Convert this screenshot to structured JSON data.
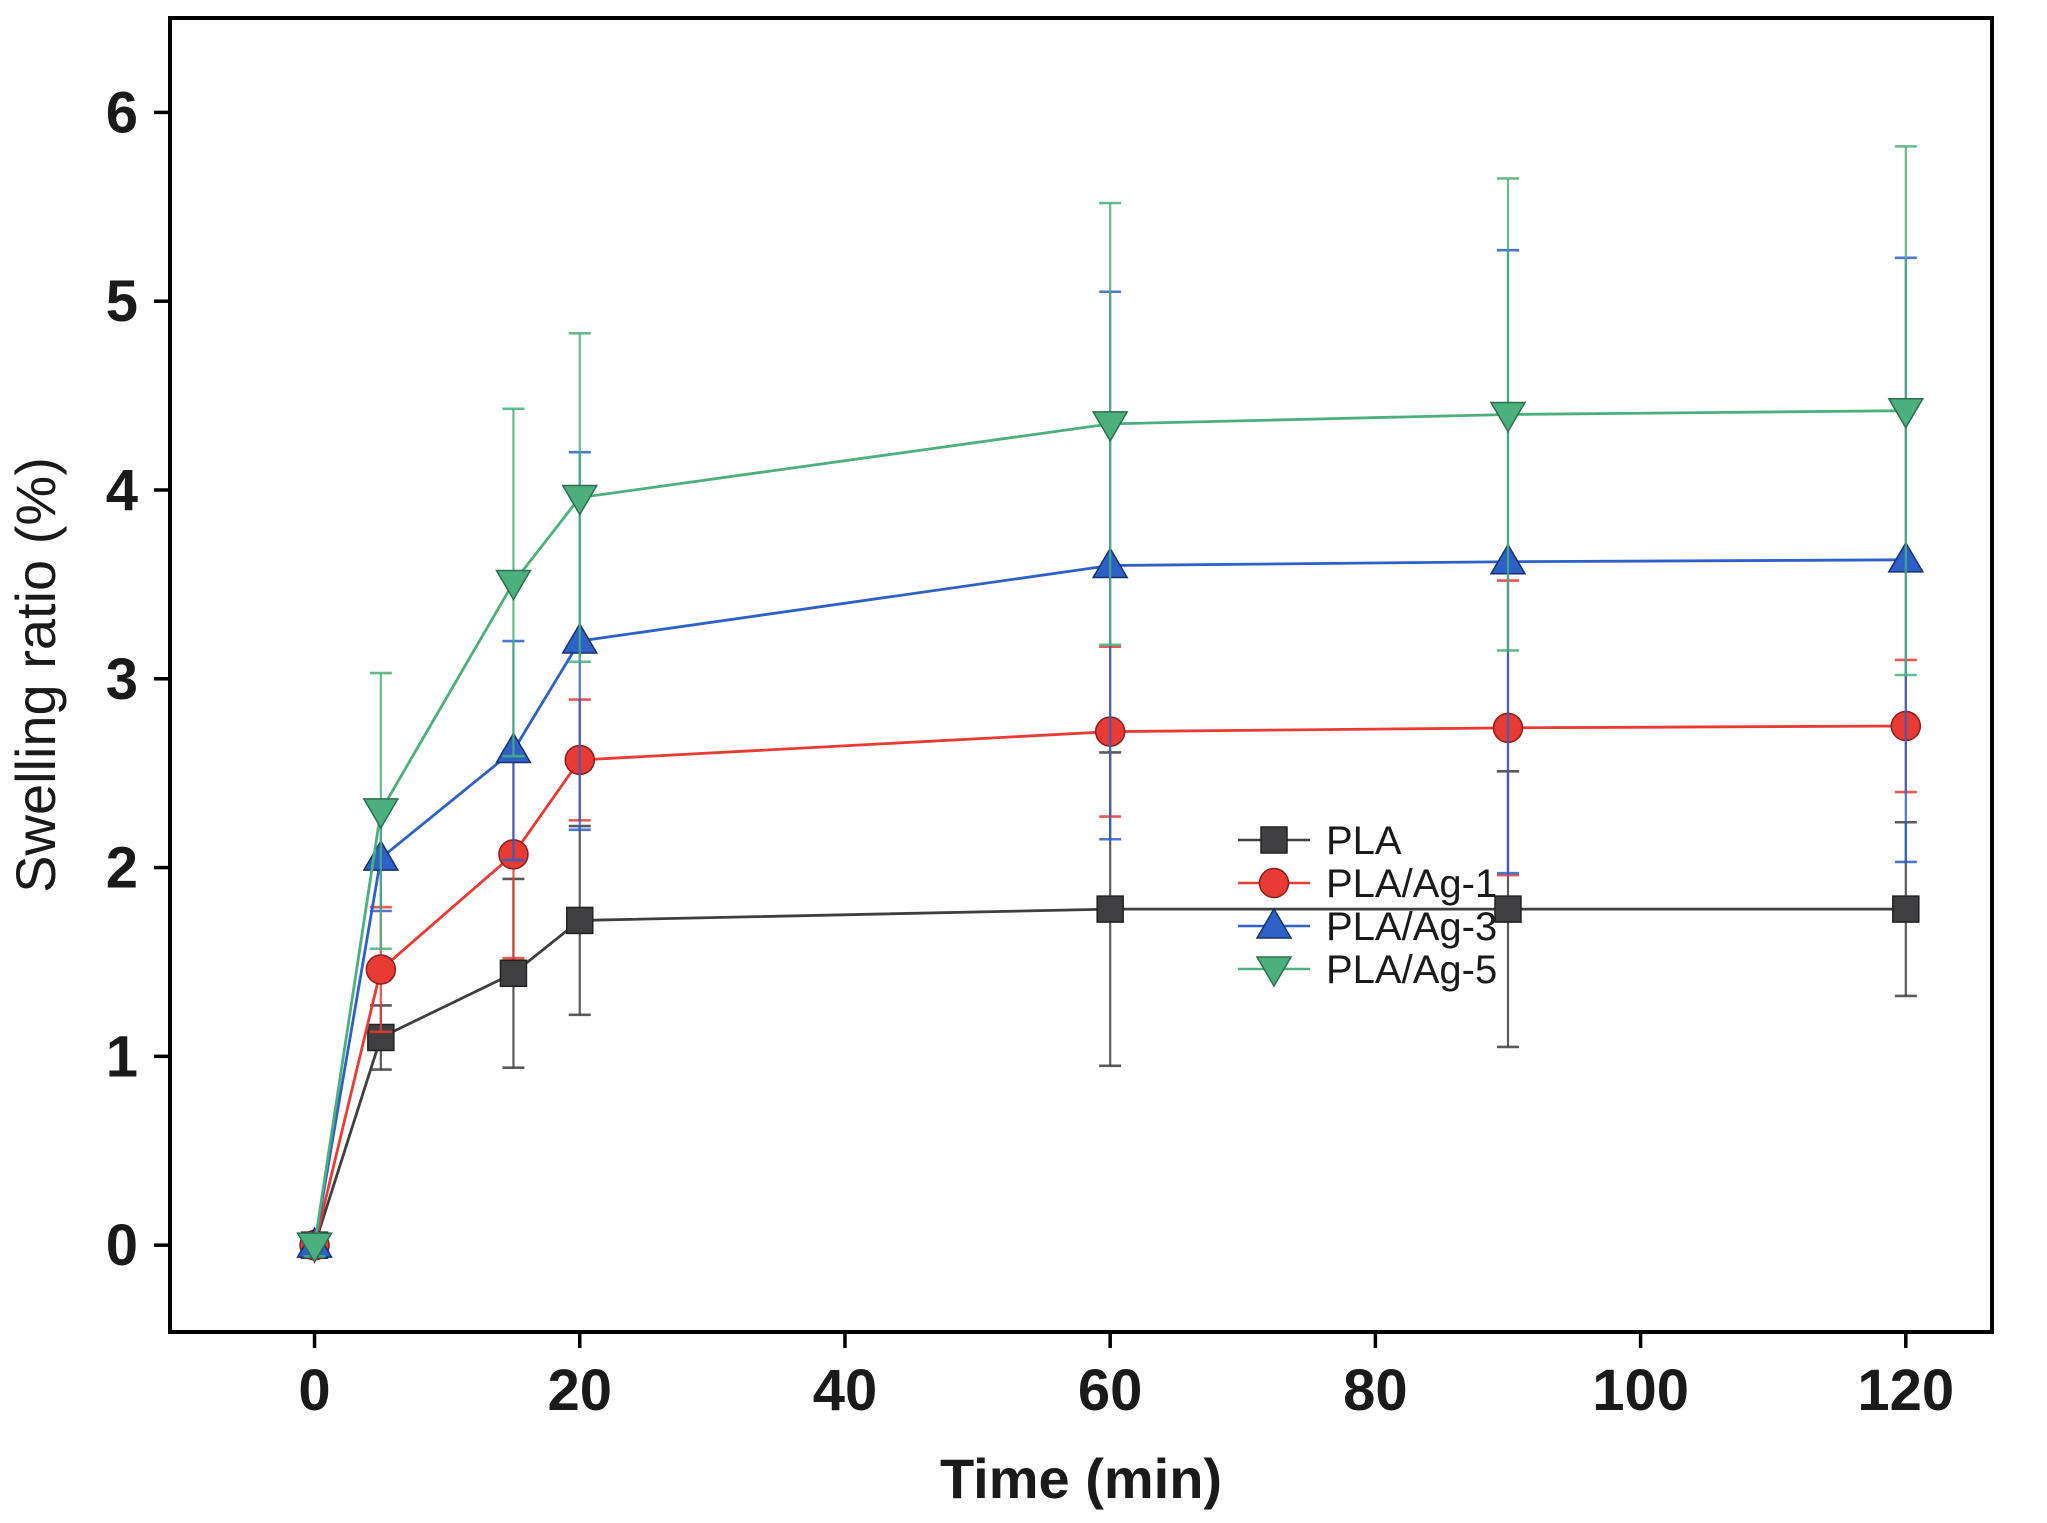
{
  "chart_data": {
    "type": "line",
    "title": "",
    "xlabel": "Time (min)",
    "ylabel": "Swelling ratio (%)",
    "xlim": [
      -10.9,
      126.5
    ],
    "ylim": [
      -0.46,
      6.5
    ],
    "xticks": [
      0,
      20,
      40,
      60,
      80,
      100,
      120
    ],
    "yticks": [
      0,
      1,
      2,
      3,
      4,
      5,
      6
    ],
    "grid": false,
    "legend_position": "lower-right",
    "x": [
      0,
      5,
      15,
      20,
      60,
      90,
      120
    ],
    "series": [
      {
        "name": "PLA",
        "marker": "square",
        "color": "#3f3f41",
        "values": [
          0,
          1.1,
          1.44,
          1.72,
          1.78,
          1.78,
          1.78
        ],
        "errors": [
          0.04,
          0.17,
          0.5,
          0.5,
          0.83,
          0.73,
          0.46
        ]
      },
      {
        "name": "PLA/Ag-1",
        "marker": "circle",
        "color": "#e73b33",
        "values": [
          0,
          1.46,
          2.07,
          2.57,
          2.72,
          2.74,
          2.75
        ],
        "errors": [
          0.04,
          0.33,
          0.55,
          0.32,
          0.45,
          0.78,
          0.35
        ]
      },
      {
        "name": "PLA/Ag-3",
        "marker": "triangle-up",
        "color": "#2d61c8",
        "values": [
          0,
          2.05,
          2.62,
          3.2,
          3.6,
          3.62,
          3.63
        ],
        "errors": [
          0.04,
          0.28,
          0.58,
          1.0,
          1.45,
          1.65,
          1.6
        ]
      },
      {
        "name": "PLA/Ag-5",
        "marker": "triangle-down",
        "color": "#4caf7e",
        "values": [
          0,
          2.3,
          3.51,
          3.96,
          4.35,
          4.4,
          4.42
        ],
        "errors": [
          0.06,
          0.73,
          0.92,
          0.87,
          1.17,
          1.25,
          1.4
        ]
      }
    ],
    "legend": [
      "PLA",
      "PLA/Ag-1",
      "PLA/Ag-3",
      "PLA/Ag-5"
    ]
  }
}
